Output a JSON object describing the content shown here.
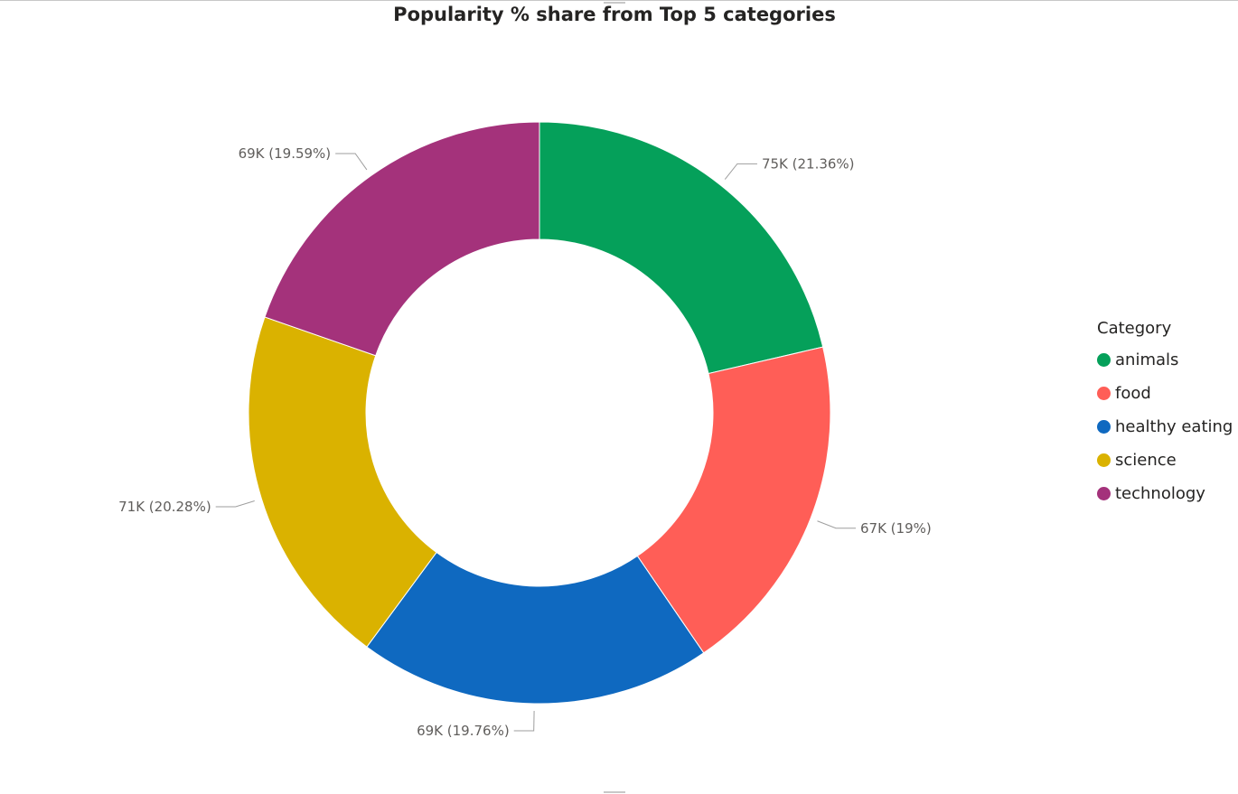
{
  "chart_data": {
    "type": "pie",
    "title": "Popularity % share from Top 5 categories",
    "legend_title": "Category",
    "legend_position": "right",
    "donut": true,
    "categories": [
      "animals",
      "food",
      "healthy eating",
      "science",
      "technology"
    ],
    "values": [
      75,
      67,
      69,
      71,
      69
    ],
    "shares": [
      21.36,
      19,
      19.76,
      20.28,
      19.59
    ],
    "data_labels": [
      "75K (21.36%)",
      "67K (19%)",
      "69K (19.76%)",
      "71K (20.28%)",
      "69K (19.59%)"
    ],
    "colors": [
      "#05a05a",
      "#ff5e57",
      "#0f69c0",
      "#dab200",
      "#a4327b"
    ]
  }
}
